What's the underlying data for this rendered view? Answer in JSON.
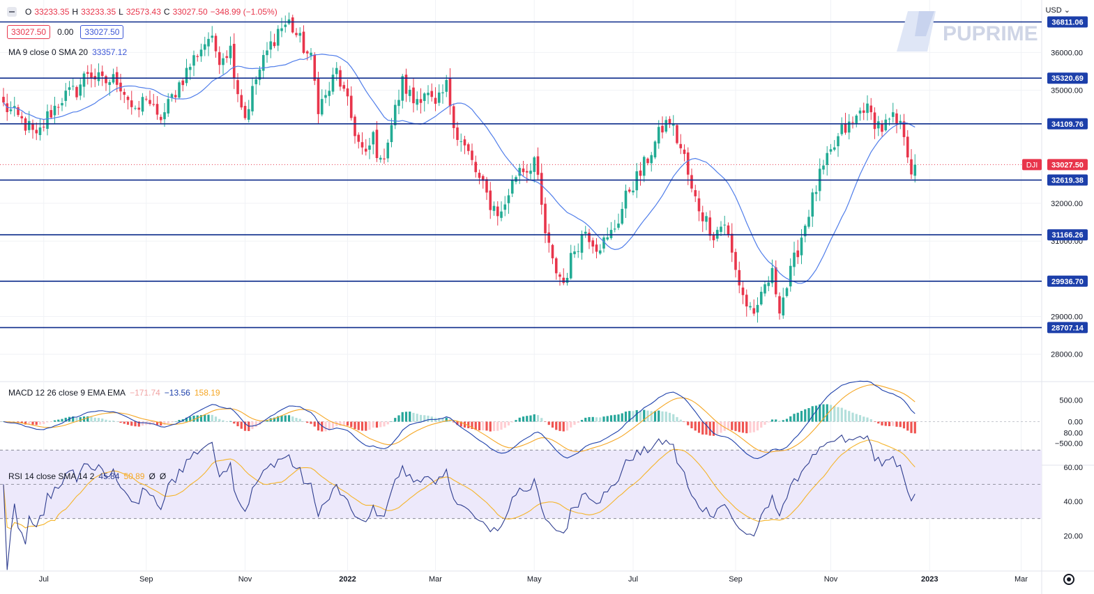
{
  "header": {
    "o_label": "O",
    "o_value": "33233.35",
    "h_label": "H",
    "h_value": "33233.35",
    "l_label": "L",
    "l_value": "32573.43",
    "c_label": "C",
    "c_value": "33027.50",
    "change": "−348.99 (−1.05%)",
    "bid": "33027.50",
    "spread": "0.00",
    "ask": "33027.50",
    "ma_name": "MA 9 close 0 SMA 20",
    "ma_value": "33357.12"
  },
  "currency": "USD",
  "logo_text": "PUPRIME",
  "colors": {
    "up": "#22ab94",
    "down": "#e8354b",
    "ma": "#4f7dea",
    "level": "#0b2a8a",
    "macd": "#1c3faa",
    "signal": "#f5a623",
    "rsi": "#2e3d8f",
    "rsi_ma": "#f5b42a",
    "rsi_band": "#ede9fb",
    "accent_label": "#1c3faa",
    "last_label": "#e8354b"
  },
  "chart_data": [
    {
      "type": "candlestick",
      "symbol": "DJI",
      "last_price": 33027.5,
      "last_price_label": "33027.50",
      "y_ticks": [
        28000,
        29000,
        31000,
        32000,
        35000,
        36000
      ],
      "y_tick_labels": [
        "28000.00",
        "29000.00",
        "31000.00",
        "32000.00",
        "35000.00",
        "36000.00"
      ],
      "x_ticks": [
        "Jul",
        "Sep",
        "Nov",
        "2022",
        "Mar",
        "May",
        "Jul",
        "Sep",
        "Nov",
        "2023",
        "Mar"
      ],
      "levels": [
        36811.06,
        35320.69,
        34109.76,
        32619.38,
        31166.26,
        29936.7,
        28707.14
      ],
      "level_labels": [
        "36811.06",
        "35320.69",
        "34109.76",
        "32619.38",
        "31166.26",
        "29936.70",
        "28707.14"
      ],
      "close_path": [
        [
          0,
          34600
        ],
        [
          7,
          34000
        ],
        [
          9,
          33700
        ],
        [
          12,
          34300
        ],
        [
          16,
          34800
        ],
        [
          20,
          35000
        ],
        [
          23,
          35500
        ],
        [
          27,
          35200
        ],
        [
          31,
          35300
        ],
        [
          34,
          34800
        ],
        [
          36,
          34300
        ],
        [
          39,
          34900
        ],
        [
          42,
          34200
        ],
        [
          44,
          34400
        ],
        [
          47,
          35000
        ],
        [
          50,
          35500
        ],
        [
          53,
          36000
        ],
        [
          56,
          36400
        ],
        [
          59,
          35900
        ],
        [
          62,
          36100
        ],
        [
          64,
          35000
        ],
        [
          66,
          34300
        ],
        [
          69,
          35300
        ],
        [
          72,
          36000
        ],
        [
          75,
          36600
        ],
        [
          78,
          36800
        ],
        [
          81,
          36300
        ],
        [
          84,
          35800
        ],
        [
          86,
          34600
        ],
        [
          88,
          34800
        ],
        [
          91,
          35500
        ],
        [
          94,
          34600
        ],
        [
          97,
          33600
        ],
        [
          99,
          33200
        ],
        [
          101,
          33800
        ],
        [
          103,
          33000
        ],
        [
          106,
          34100
        ],
        [
          109,
          35200
        ],
        [
          112,
          34700
        ],
        [
          115,
          35000
        ],
        [
          118,
          34500
        ],
        [
          121,
          35100
        ],
        [
          124,
          33800
        ],
        [
          127,
          33300
        ],
        [
          130,
          32600
        ],
        [
          133,
          32000
        ],
        [
          136,
          31700
        ],
        [
          138,
          32300
        ],
        [
          141,
          33000
        ],
        [
          143,
          32900
        ],
        [
          145,
          33200
        ],
        [
          148,
          31200
        ],
        [
          150,
          30400
        ],
        [
          153,
          29900
        ],
        [
          156,
          30800
        ],
        [
          159,
          31300
        ],
        [
          162,
          30900
        ],
        [
          165,
          31000
        ],
        [
          168,
          31600
        ],
        [
          171,
          32400
        ],
        [
          174,
          32800
        ],
        [
          177,
          33400
        ],
        [
          180,
          34000
        ],
        [
          182,
          34200
        ],
        [
          184,
          33700
        ],
        [
          186,
          33200
        ],
        [
          188,
          32300
        ],
        [
          191,
          31700
        ],
        [
          194,
          31200
        ],
        [
          197,
          31500
        ],
        [
          200,
          30200
        ],
        [
          203,
          29300
        ],
        [
          206,
          29100
        ],
        [
          208,
          29800
        ],
        [
          210,
          30100
        ],
        [
          212,
          29300
        ],
        [
          214,
          29800
        ],
        [
          217,
          30800
        ],
        [
          220,
          31800
        ],
        [
          223,
          32700
        ],
        [
          226,
          33300
        ],
        [
          229,
          33900
        ],
        [
          232,
          34100
        ],
        [
          235,
          34600
        ],
        [
          237,
          34300
        ],
        [
          240,
          34000
        ],
        [
          243,
          34200
        ],
        [
          246,
          33900
        ],
        [
          248,
          32900
        ],
        [
          250,
          33000
        ]
      ]
    },
    {
      "type": "macd",
      "title": "MACD 12 26 close 9 EMA EMA",
      "hist_label": "−171.74",
      "macd_label": "−13.56",
      "signal_label": "158.19",
      "y_ticks": [
        500,
        0,
        -500
      ],
      "y_tick_labels": [
        "500.00",
        "0.00",
        "−500.00"
      ]
    },
    {
      "type": "rsi",
      "title": "RSI 14 close SMA 14 2",
      "rsi_label": "45.84",
      "rsi_ma_label": "50.89",
      "extra_1": "Ø",
      "extra_2": "Ø",
      "y_ticks": [
        80,
        60,
        40,
        20
      ],
      "y_tick_labels": [
        "80.00",
        "60.00",
        "40.00",
        "20.00"
      ],
      "band": [
        30,
        70
      ]
    }
  ]
}
